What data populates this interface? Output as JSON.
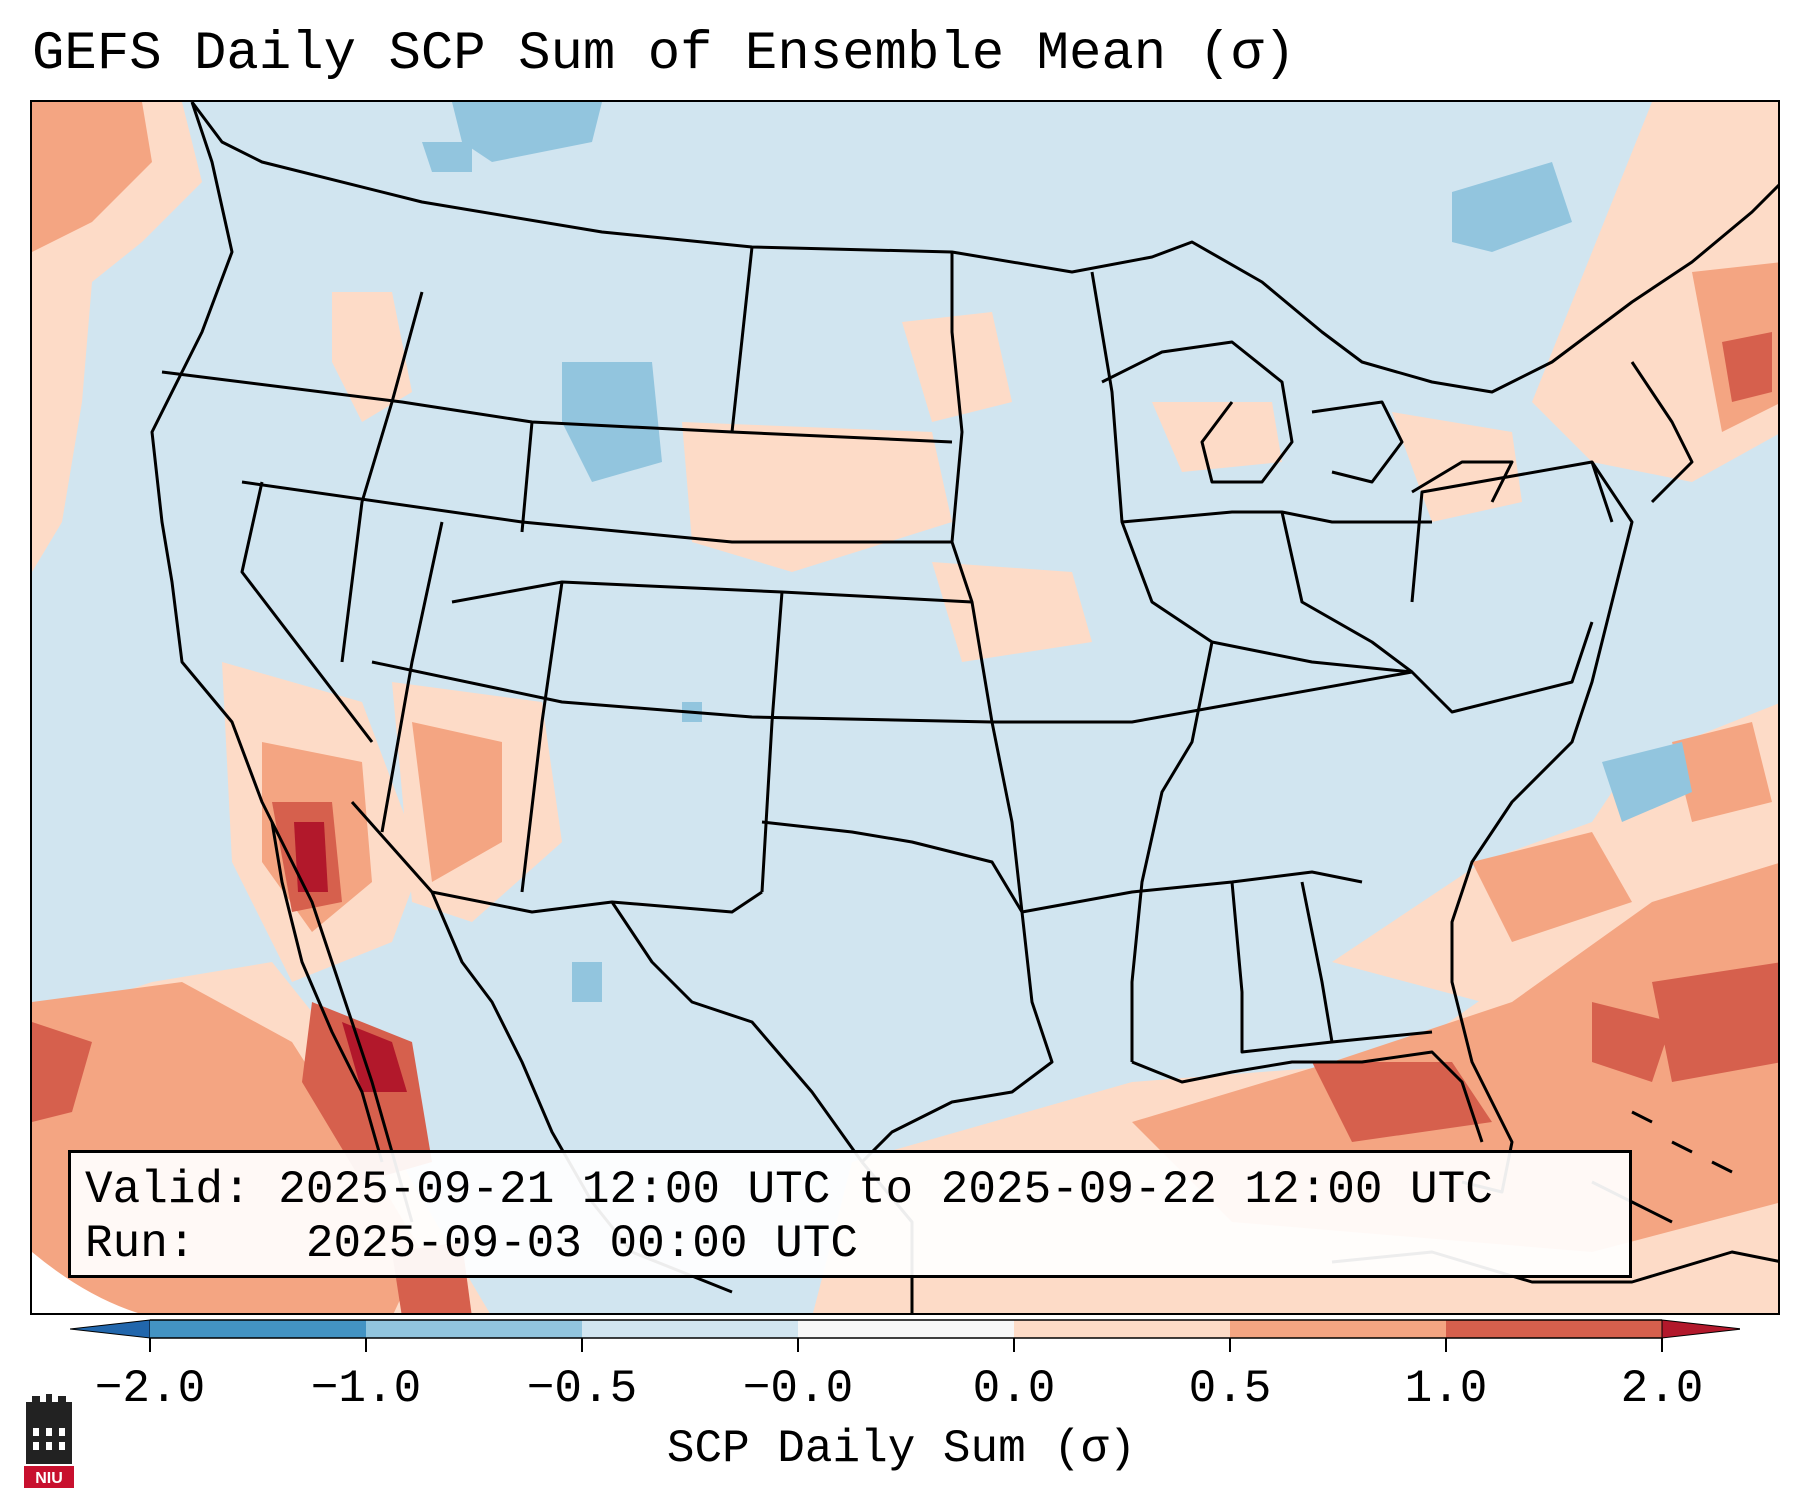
{
  "title": "GEFS Daily SCP Sum of Ensemble Mean (σ)",
  "info": {
    "valid_label": "Valid:",
    "valid_value": "2025-09-21 12:00 UTC to 2025-09-22 12:00 UTC",
    "run_label": "Run:",
    "run_value": "2025-09-03 00:00 UTC"
  },
  "colorbar": {
    "label": "SCP Daily Sum (σ)",
    "ticks": [
      "−2.0",
      "−1.0",
      "−0.5",
      "−0.0",
      "0.0",
      "0.5",
      "1.0",
      "2.0"
    ],
    "bins": [
      {
        "from": -2.0,
        "to": -1.0,
        "color": "#4393c3"
      },
      {
        "from": -1.0,
        "to": -0.5,
        "color": "#92c5de"
      },
      {
        "from": -0.5,
        "to": -0.0,
        "color": "#d1e5f0"
      },
      {
        "from": -0.0,
        "to": 0.0,
        "color": "#f7f7f7"
      },
      {
        "from": 0.0,
        "to": 0.5,
        "color": "#fddbc7"
      },
      {
        "from": 0.5,
        "to": 1.0,
        "color": "#f4a582"
      },
      {
        "from": 1.0,
        "to": 2.0,
        "color": "#d6604d"
      }
    ],
    "under_color": "#2166ac",
    "over_color": "#b2182b"
  },
  "logo": {
    "text": "NIU",
    "color": "#c8102e"
  },
  "map": {
    "background_color": "#d1e5f0",
    "border_color": "#000000"
  }
}
